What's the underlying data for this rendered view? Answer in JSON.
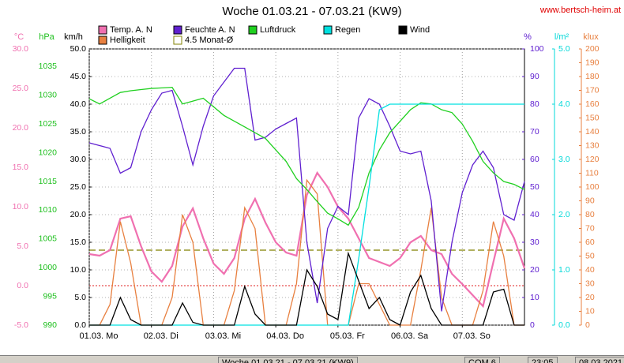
{
  "chart_data": {
    "type": "line",
    "title": "Woche 01.03.21 - 07.03.21 (KW9)",
    "source": "www.bertsch-heim.at",
    "xlim": [
      0,
      168
    ],
    "xticks": [
      {
        "value": 0,
        "label": "01.03. Mo"
      },
      {
        "value": 24,
        "label": "02.03. Di"
      },
      {
        "value": 48,
        "label": "03.03. Mi"
      },
      {
        "value": 72,
        "label": "04.03. Do"
      },
      {
        "value": 96,
        "label": "05.03. Fr"
      },
      {
        "value": 120,
        "label": "06.03. Sa"
      },
      {
        "value": 144,
        "label": "07.03. So"
      }
    ],
    "x": [
      0,
      4,
      8,
      12,
      16,
      20,
      24,
      28,
      32,
      36,
      40,
      44,
      48,
      52,
      56,
      60,
      64,
      68,
      72,
      76,
      80,
      84,
      88,
      92,
      96,
      100,
      104,
      108,
      112,
      116,
      120,
      124,
      128,
      132,
      136,
      140,
      144,
      148,
      152,
      156,
      160,
      164,
      168
    ],
    "axes": {
      "temp": {
        "label": "°C",
        "color": "#f070b0",
        "lim": [
          -5,
          30
        ],
        "ticks": [
          {
            "value": -5,
            "label": "-5.0"
          },
          {
            "value": 0,
            "label": "0.0"
          },
          {
            "value": 5,
            "label": "5.0"
          },
          {
            "value": 10,
            "label": "10.0"
          },
          {
            "value": 15,
            "label": "15.0"
          },
          {
            "value": 20,
            "label": "20.0"
          },
          {
            "value": 25,
            "label": "25.0"
          },
          {
            "value": 30,
            "label": "30.0"
          }
        ]
      },
      "hpa": {
        "label": "hPa",
        "color": "#20c020",
        "lim": [
          990,
          1038.08
        ],
        "ticks": [
          990,
          995,
          1000,
          1005,
          1010,
          1015,
          1020,
          1025,
          1030,
          1035
        ]
      },
      "kmh": {
        "label": "km/h",
        "color": "#000000",
        "lim": [
          0,
          50
        ],
        "ticks": [
          {
            "value": 0,
            "label": "0.0"
          },
          {
            "value": 5,
            "label": "5.0"
          },
          {
            "value": 10,
            "label": "10.0"
          },
          {
            "value": 15,
            "label": "15.0"
          },
          {
            "value": 20,
            "label": "20.0"
          },
          {
            "value": 25,
            "label": "25.0"
          },
          {
            "value": 30,
            "label": "30.0"
          },
          {
            "value": 35,
            "label": "35.0"
          },
          {
            "value": 40,
            "label": "40.0"
          },
          {
            "value": 45,
            "label": "45.0"
          },
          {
            "value": 50,
            "label": "50.0"
          }
        ]
      },
      "pct": {
        "label": "%",
        "color": "#6020d0",
        "lim": [
          0,
          100
        ],
        "ticks": [
          0,
          10,
          20,
          30,
          40,
          50,
          60,
          70,
          80,
          90,
          100
        ]
      },
      "rain": {
        "label": "l/m²",
        "color": "#00d8d8",
        "lim": [
          0,
          5
        ],
        "ticks": [
          {
            "value": 0,
            "label": "0.0"
          },
          {
            "value": 1,
            "label": "1.0"
          },
          {
            "value": 2,
            "label": "2.0"
          },
          {
            "value": 3,
            "label": "3.0"
          },
          {
            "value": 4,
            "label": "4.0"
          },
          {
            "value": 5,
            "label": "5.0"
          }
        ]
      },
      "klux": {
        "label": "klux",
        "color": "#e88040",
        "lim": [
          0,
          200
        ],
        "ticks": [
          0,
          10,
          20,
          30,
          40,
          50,
          60,
          70,
          80,
          90,
          100,
          110,
          120,
          130,
          140,
          150,
          160,
          170,
          180,
          190,
          200
        ]
      }
    },
    "series": [
      {
        "name": "Temp. A. N",
        "color": "#f070b0",
        "axis": "temp",
        "values": [
          4.0,
          3.8,
          4.5,
          8.5,
          8.8,
          5.0,
          1.8,
          0.5,
          2.5,
          7.5,
          9.8,
          6.0,
          2.8,
          1.5,
          3.5,
          8.5,
          11.0,
          8.0,
          5.5,
          4.2,
          3.8,
          11.5,
          14.3,
          12.5,
          10.0,
          8.5,
          6.0,
          3.5,
          3.0,
          2.5,
          3.5,
          5.5,
          6.3,
          4.5,
          4.0,
          1.5,
          0.2,
          -1.2,
          -2.6,
          3.0,
          8.5,
          6.0,
          2.2
        ]
      },
      {
        "name": "Helligkeit",
        "color": "#e88040",
        "axis": "klux",
        "values": [
          0,
          0,
          15,
          75,
          45,
          0,
          0,
          0,
          20,
          80,
          60,
          0,
          0,
          0,
          25,
          85,
          70,
          0,
          0,
          0,
          30,
          105,
          95,
          0,
          0,
          0,
          30,
          30,
          15,
          0,
          0,
          0,
          40,
          85,
          20,
          0,
          0,
          0,
          25,
          75,
          50,
          0,
          0
        ]
      },
      {
        "name": "Feuchte A. N",
        "color": "#6020d0",
        "axis": "pct",
        "values": [
          66,
          65,
          64,
          55,
          57,
          70,
          78,
          84,
          85,
          72,
          58,
          72,
          83,
          88,
          93,
          93,
          67,
          68,
          71,
          73,
          75,
          30,
          8,
          35,
          43,
          40,
          75,
          82,
          80,
          72,
          63,
          62,
          63,
          45,
          5,
          30,
          48,
          58,
          63,
          57,
          40,
          38,
          52
        ]
      },
      {
        "name": "Luftdruck",
        "color": "#20d020",
        "axis": "hpa",
        "values": [
          1029.4,
          1028.5,
          1029.5,
          1030.5,
          1030.8,
          1031.0,
          1031.2,
          1031.3,
          1031.4,
          1028.5,
          1029.0,
          1029.5,
          1028.0,
          1026.5,
          1025.5,
          1024.5,
          1023.5,
          1022.5,
          1020.5,
          1018.5,
          1015.5,
          1013.6,
          1011.5,
          1009.5,
          1008.5,
          1007.4,
          1010.5,
          1016.5,
          1020.5,
          1023.5,
          1025.5,
          1027.5,
          1028.7,
          1028.5,
          1027.5,
          1027.0,
          1025.0,
          1022.0,
          1018.5,
          1016.5,
          1015.0,
          1014.5,
          1013.6
        ]
      },
      {
        "name": "Regen",
        "color": "#00e0e0",
        "axis": "rain",
        "values": [
          0,
          0,
          0,
          0,
          0,
          0,
          0,
          0,
          0,
          0,
          0,
          0,
          0,
          0,
          0,
          0,
          0,
          0,
          0,
          0,
          0,
          0,
          0,
          0,
          0,
          0,
          1.2,
          2.5,
          3.9,
          4.0,
          4.0,
          4.0,
          4.0,
          4.0,
          4.0,
          4.0,
          4.0,
          4.0,
          4.0,
          4.0,
          4.0,
          4.0,
          4.0
        ]
      },
      {
        "name": "Wind",
        "color": "#000000",
        "axis": "kmh",
        "values": [
          0,
          0,
          0,
          5,
          1,
          0,
          0,
          0,
          0,
          4,
          0.5,
          0,
          0,
          0,
          0,
          7,
          2,
          0,
          0,
          0,
          0,
          10,
          7,
          2,
          1,
          13,
          8,
          3,
          5,
          1,
          0,
          6,
          9,
          3,
          0,
          0,
          0,
          0,
          0,
          6,
          6.5,
          0,
          0
        ]
      }
    ],
    "reference_lines": [
      {
        "name": "4.5 Monat-Ø",
        "value": 4.5,
        "axis": "temp",
        "color": "#808000"
      }
    ],
    "grid": true,
    "status_bar": [
      "Woche 01.03.21 - 07.03.21 (KW9)",
      "COM 6",
      "23:05",
      "08.03.2021"
    ]
  }
}
